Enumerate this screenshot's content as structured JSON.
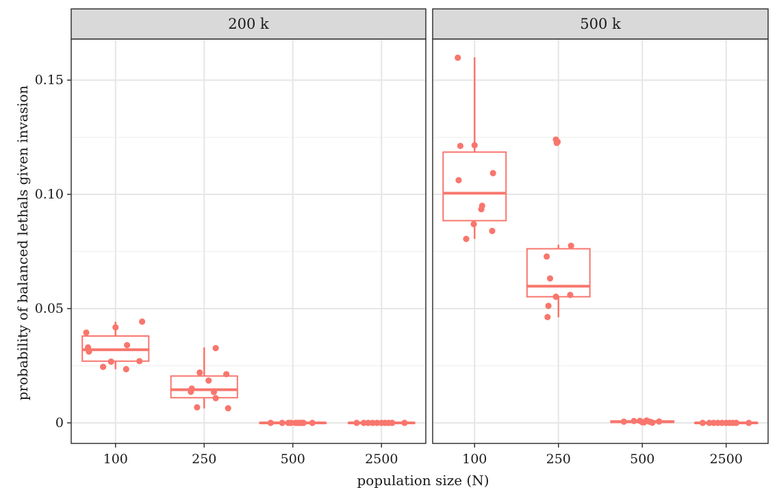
{
  "chart_data": {
    "type": "boxplot",
    "xlabel": "population size (N)",
    "ylabel": "probability of balanced lethals given invasion",
    "categories": [
      "100",
      "250",
      "500",
      "2500"
    ],
    "ylim": [
      -0.009,
      0.168
    ],
    "y_ticks": [
      0,
      0.05,
      0.1,
      0.15
    ],
    "y_tick_labels": [
      "0",
      "0.05",
      "0.10",
      "0.15"
    ],
    "grid": true,
    "color": "#F8766D",
    "panels": [
      {
        "label": "200 k",
        "boxes": [
          {
            "category": "100",
            "q1": 0.027,
            "median": 0.032,
            "q3": 0.038,
            "whisker_low": 0.0235,
            "whisker_high": 0.0443,
            "points": [
              [
                -0.33,
                0.0395
              ],
              [
                -0.31,
                0.033
              ],
              [
                -0.3,
                0.0312
              ],
              [
                -0.14,
                0.0245
              ],
              [
                0.0,
                0.0418
              ],
              [
                -0.05,
                0.0268
              ],
              [
                0.13,
                0.034
              ],
              [
                0.12,
                0.0235
              ],
              [
                0.27,
                0.027
              ],
              [
                0.3,
                0.0443
              ]
            ]
          },
          {
            "category": "250",
            "q1": 0.011,
            "median": 0.0145,
            "q3": 0.0205,
            "whisker_low": 0.0063,
            "whisker_high": 0.033,
            "points": [
              [
                -0.14,
                0.015
              ],
              [
                -0.15,
                0.0136
              ],
              [
                -0.05,
                0.022
              ],
              [
                -0.08,
                0.0068
              ],
              [
                0.05,
                0.0185
              ],
              [
                0.11,
                0.0135
              ],
              [
                0.13,
                0.0108
              ],
              [
                0.13,
                0.0327
              ],
              [
                0.25,
                0.0213
              ],
              [
                0.27,
                0.0064
              ]
            ]
          },
          {
            "category": "500",
            "q1": 0.0,
            "median": 0.0,
            "q3": 0.0,
            "whisker_low": 0.0,
            "whisker_high": 0.0,
            "points": [
              [
                -0.25,
                0.0
              ],
              [
                -0.12,
                0.0
              ],
              [
                -0.02,
                0.0
              ],
              [
                0.03,
                0.0
              ],
              [
                0.05,
                0.0
              ],
              [
                0.08,
                0.0
              ],
              [
                0.1,
                0.0
              ],
              [
                0.22,
                0.0
              ],
              [
                0.12,
                0.0
              ],
              [
                -0.05,
                0.0
              ]
            ]
          },
          {
            "category": "2500",
            "q1": 0.0,
            "median": 0.0,
            "q3": 0.0,
            "whisker_low": 0.0,
            "whisker_high": 0.0,
            "points": [
              [
                -0.28,
                0.0
              ],
              [
                -0.15,
                0.0
              ],
              [
                -0.1,
                0.0
              ],
              [
                -0.05,
                0.0
              ],
              [
                0.0,
                0.0
              ],
              [
                0.04,
                0.0
              ],
              [
                0.08,
                0.0
              ],
              [
                0.12,
                0.0
              ],
              [
                0.26,
                0.0
              ],
              [
                -0.2,
                0.0
              ]
            ]
          }
        ]
      },
      {
        "label": "500 k",
        "boxes": [
          {
            "category": "100",
            "q1": 0.0885,
            "median": 0.1005,
            "q3": 0.1185,
            "whisker_low": 0.0805,
            "whisker_high": 0.16,
            "points": [
              [
                -0.2,
                0.1598
              ],
              [
                -0.17,
                0.1212
              ],
              [
                0.0,
                0.1215
              ],
              [
                -0.19,
                0.1062
              ],
              [
                0.22,
                0.1093
              ],
              [
                0.09,
                0.095
              ],
              [
                0.08,
                0.0935
              ],
              [
                -0.01,
                0.087
              ],
              [
                0.21,
                0.084
              ],
              [
                -0.1,
                0.0805
              ]
            ]
          },
          {
            "category": "250",
            "q1": 0.0552,
            "median": 0.0598,
            "q3": 0.0762,
            "whisker_low": 0.0462,
            "whisker_high": 0.078,
            "points": [
              [
                -0.03,
                0.124
              ],
              [
                -0.01,
                0.123
              ],
              [
                -0.02,
                0.1225
              ],
              [
                -0.14,
                0.0728
              ],
              [
                0.15,
                0.0775
              ],
              [
                -0.1,
                0.0632
              ],
              [
                -0.03,
                0.0552
              ],
              [
                0.14,
                0.056
              ],
              [
                -0.12,
                0.0512
              ],
              [
                -0.13,
                0.0463
              ]
            ]
          },
          {
            "category": "500",
            "q1": 0.0002,
            "median": 0.0005,
            "q3": 0.0008,
            "whisker_low": 0.0,
            "whisker_high": 0.0012,
            "points": [
              [
                -0.22,
                0.0005
              ],
              [
                -0.1,
                0.0008
              ],
              [
                0.0,
                0.0003
              ],
              [
                0.05,
                0.001
              ],
              [
                0.02,
                0.0002
              ],
              [
                0.08,
                0.0006
              ],
              [
                0.1,
                0.0004
              ],
              [
                0.2,
                0.0006
              ],
              [
                -0.03,
                0.0009
              ],
              [
                0.12,
                0.0001
              ]
            ]
          },
          {
            "category": "2500",
            "q1": 0.0,
            "median": 0.0,
            "q3": 0.0,
            "whisker_low": 0.0,
            "whisker_high": 0.0,
            "points": [
              [
                -0.28,
                0.0
              ],
              [
                -0.15,
                0.0
              ],
              [
                -0.1,
                0.0
              ],
              [
                -0.05,
                0.0
              ],
              [
                0.0,
                0.0
              ],
              [
                0.04,
                0.0
              ],
              [
                0.08,
                0.0
              ],
              [
                0.12,
                0.0
              ],
              [
                0.27,
                0.0
              ],
              [
                -0.2,
                0.0
              ]
            ]
          }
        ]
      }
    ]
  }
}
